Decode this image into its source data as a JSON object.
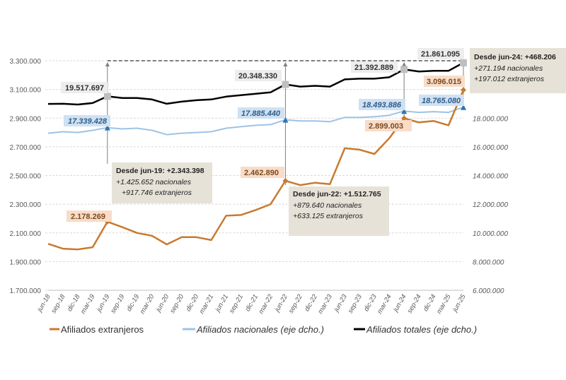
{
  "chart_data": {
    "type": "line",
    "categories": [
      "jun-18",
      "sep-18",
      "dic-18",
      "mar-19",
      "jun-19",
      "sep-19",
      "dic-19",
      "mar-20",
      "jun-20",
      "sep-20",
      "dic-20",
      "mar-21",
      "jun-21",
      "sep-21",
      "dic-21",
      "mar-22",
      "jun-22",
      "sep-22",
      "dic-22",
      "mar-23",
      "jun-23",
      "sep-23",
      "dic-23",
      "mar-24",
      "jun-24",
      "sep-24",
      "dic-24",
      "mar-25",
      "jun-25"
    ],
    "left_axis": {
      "ylim": [
        1700000,
        3300000
      ],
      "ticks": [
        "3.300.000",
        "3.100.000",
        "2.900.000",
        "2.700.000",
        "2.500.000",
        "2.300.000",
        "2.100.000",
        "1.900.000",
        "1.700.000"
      ]
    },
    "right_axis": {
      "ylim": [
        6000000,
        22000000
      ],
      "ticks": [
        "18.000.000",
        "16.000.000",
        "14.000.000",
        "12.000.000",
        "10.000.000",
        "8.000.000",
        "6.000.000"
      ]
    },
    "grid": true,
    "legend_position": "bottom",
    "series": [
      {
        "name": "Afiliados extranjeros",
        "axis": "left",
        "color": "#C87A2E",
        "values": [
          2024000,
          1990000,
          1985000,
          2000000,
          2178269,
          2140000,
          2100000,
          2080000,
          2020000,
          2070000,
          2070000,
          2050000,
          2220000,
          2225000,
          2260000,
          2300000,
          2462890,
          2433000,
          2450000,
          2440000,
          2690000,
          2680000,
          2650000,
          2760000,
          2899003,
          2870000,
          2880000,
          2850000,
          3096015
        ]
      },
      {
        "name": "Afiliados nacionales (eje dcho.)",
        "axis": "right",
        "color": "#9DC3E6",
        "values": [
          16950000,
          17050000,
          17000000,
          17150000,
          17339428,
          17250000,
          17300000,
          17150000,
          16850000,
          16950000,
          17000000,
          17050000,
          17300000,
          17400000,
          17500000,
          17550000,
          17885440,
          17800000,
          17800000,
          17750000,
          18050000,
          18050000,
          18100000,
          18200000,
          18493886,
          18400000,
          18450000,
          18400000,
          18765080
        ]
      },
      {
        "name": "Afiliados totales (eje dcho.)",
        "axis": "right",
        "color": "#000000",
        "values": [
          18990000,
          19000000,
          18950000,
          19050000,
          19517697,
          19400000,
          19400000,
          19300000,
          19000000,
          19150000,
          19250000,
          19300000,
          19500000,
          19600000,
          19700000,
          19800000,
          20348330,
          20200000,
          20250000,
          20200000,
          20700000,
          20750000,
          20750000,
          20850000,
          21392889,
          21250000,
          21300000,
          21300000,
          21861095
        ]
      }
    ],
    "data_labels": [
      {
        "text": "19.517.697",
        "series": "totales",
        "at": "jun-19"
      },
      {
        "text": "17.339.428",
        "series": "nacionales",
        "at": "jun-19"
      },
      {
        "text": "2.178.269",
        "series": "extranjeros",
        "at": "jun-19"
      },
      {
        "text": "20.348.330",
        "series": "totales",
        "at": "jun-22"
      },
      {
        "text": "17.885.440",
        "series": "nacionales",
        "at": "jun-22"
      },
      {
        "text": "2.462.890",
        "series": "extranjeros",
        "at": "jun-22"
      },
      {
        "text": "21.392.889",
        "series": "totales",
        "at": "jun-24"
      },
      {
        "text": "18.493.886",
        "series": "nacionales",
        "at": "jun-24"
      },
      {
        "text": "2.899.003",
        "series": "extranjeros",
        "at": "jun-24"
      },
      {
        "text": "21.861.095",
        "series": "totales",
        "at": "jun-25"
      },
      {
        "text": "3.096.015",
        "series": "extranjeros",
        "at": "jun-25"
      },
      {
        "text": "18.765.080",
        "series": "nacionales",
        "at": "jun-25"
      }
    ],
    "annotations": [
      {
        "title": "Desde jun-19: +2.343.398",
        "line1": "+1.425.652 nacionales",
        "line2": "+917.746 extranjeros"
      },
      {
        "title": "Desde jun-22: +1.512.765",
        "line1": "+879.640 nacionales",
        "line2": "+633.125 extranjeros"
      },
      {
        "title": "Desde jun-24: +468.206",
        "line1": "+271.194 nacionales",
        "line2": "+197.012 extranjeros"
      }
    ]
  }
}
